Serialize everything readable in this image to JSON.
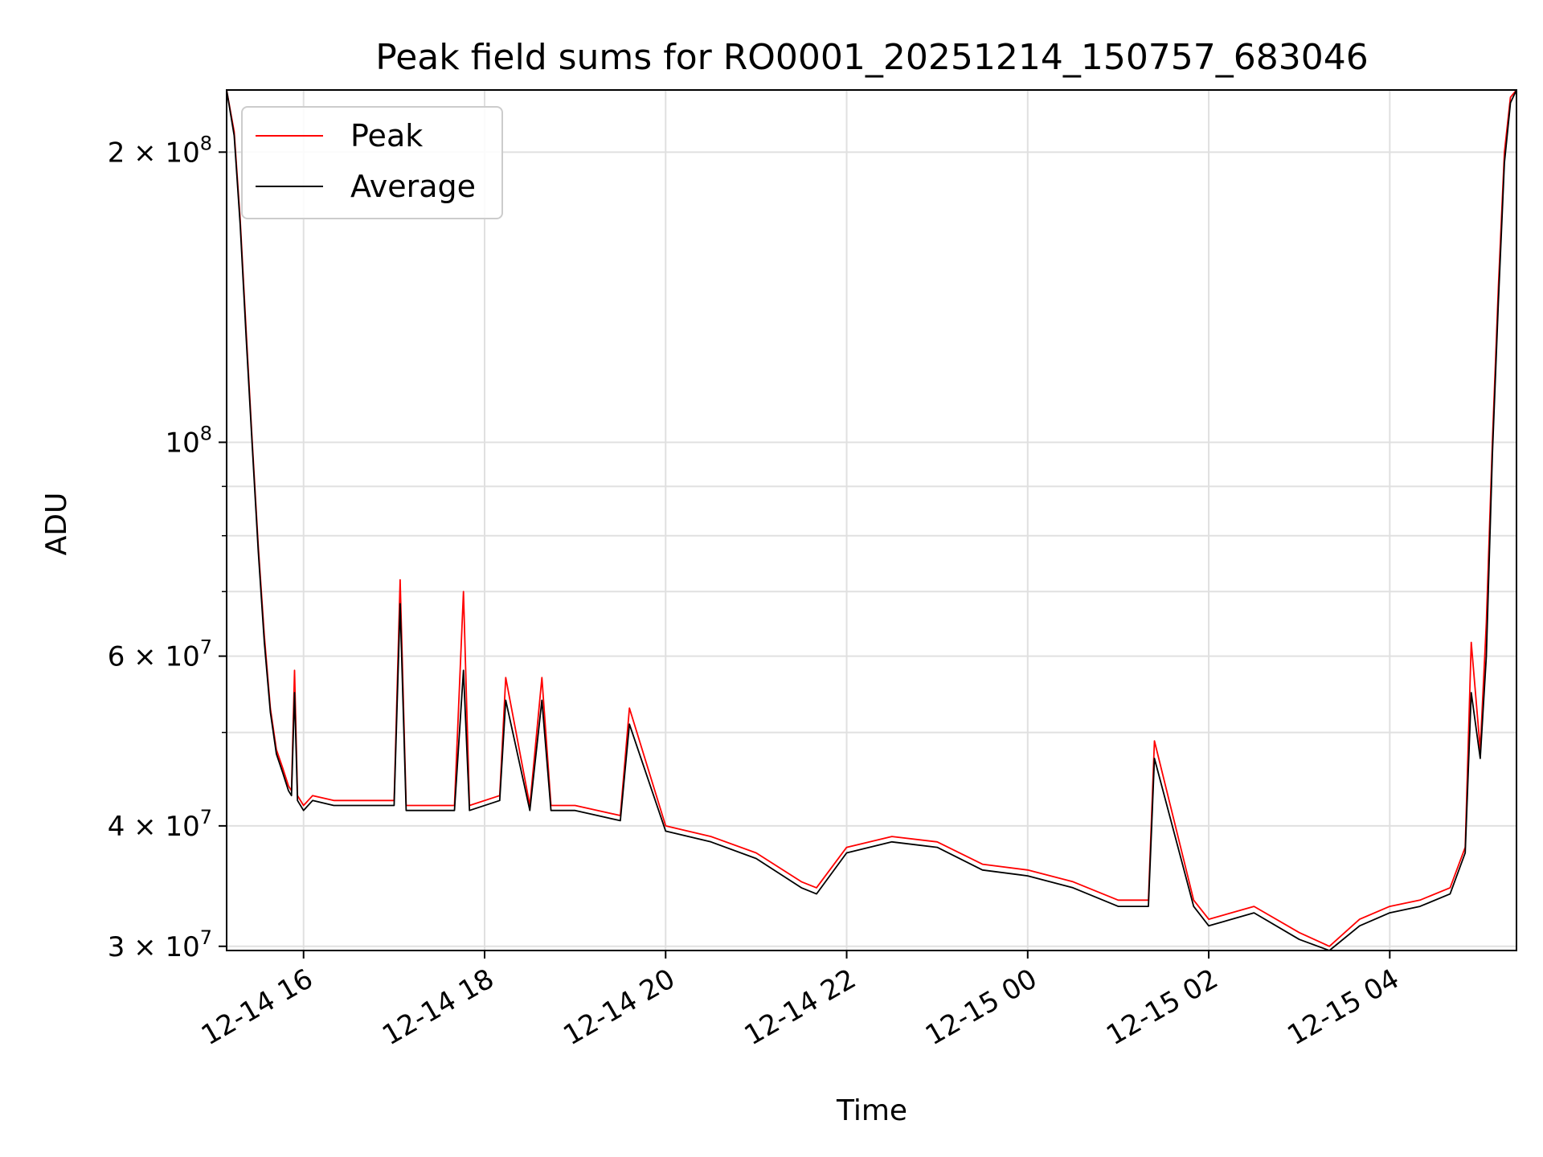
{
  "chart_data": {
    "type": "line",
    "title": "Peak field sums for RO0001_20251214_150757_683046",
    "xlabel": "Time",
    "ylabel": "ADU",
    "y_scale": "log",
    "xlim": [
      "12-14 15:09",
      "12-15 05:24"
    ],
    "ylim": [
      29700000,
      232000000
    ],
    "x_ticks": [
      "12-14 16",
      "12-14 18",
      "12-14 20",
      "12-14 22",
      "12-15 00",
      "12-15 02",
      "12-15 04"
    ],
    "y_ticks": [
      {
        "value": 200000000,
        "base": "2 × 10",
        "exp": "8"
      },
      {
        "value": 100000000,
        "base": "10",
        "exp": "8"
      },
      {
        "value": 60000000,
        "base": "6 × 10",
        "exp": "7"
      },
      {
        "value": 40000000,
        "base": "4 × 10",
        "exp": "7"
      },
      {
        "value": 30000000,
        "base": "3 × 10",
        "exp": "7"
      }
    ],
    "grid": true,
    "legend_position": "upper-left",
    "series": [
      {
        "name": "Peak",
        "color": "#ff0000",
        "x": [
          "12-14 15:09",
          "12-14 15:14",
          "12-14 15:18",
          "12-14 15:22",
          "12-14 15:26",
          "12-14 15:30",
          "12-14 15:34",
          "12-14 15:38",
          "12-14 15:42",
          "12-14 15:46",
          "12-14 15:50",
          "12-14 15:52",
          "12-14 15:54",
          "12-14 15:56",
          "12-14 16:00",
          "12-14 16:06",
          "12-14 16:20",
          "12-14 16:40",
          "12-14 17:00",
          "12-14 17:04",
          "12-14 17:08",
          "12-14 17:20",
          "12-14 17:40",
          "12-14 17:46",
          "12-14 17:50",
          "12-14 18:10",
          "12-14 18:14",
          "12-14 18:30",
          "12-14 18:38",
          "12-14 18:44",
          "12-14 19:00",
          "12-14 19:30",
          "12-14 19:36",
          "12-14 20:00",
          "12-14 20:30",
          "12-14 21:00",
          "12-14 21:30",
          "12-14 21:40",
          "12-14 22:00",
          "12-14 22:30",
          "12-14 23:00",
          "12-14 23:30",
          "12-15 00:00",
          "12-15 00:30",
          "12-15 01:00",
          "12-15 01:20",
          "12-15 01:24",
          "12-15 01:50",
          "12-15 02:00",
          "12-15 02:30",
          "12-15 03:00",
          "12-15 03:20",
          "12-15 03:40",
          "12-15 04:00",
          "12-15 04:20",
          "12-15 04:40",
          "12-15 04:50",
          "12-15 04:54",
          "12-15 05:00",
          "12-15 05:04",
          "12-15 05:08",
          "12-15 05:12",
          "12-15 05:16",
          "12-15 05:20",
          "12-15 05:24"
        ],
        "y": [
          232000000,
          210000000,
          170000000,
          130000000,
          100000000,
          78000000,
          63000000,
          53000000,
          48000000,
          46000000,
          44000000,
          43500000,
          58000000,
          43000000,
          42000000,
          43000000,
          42500000,
          42500000,
          42500000,
          72000000,
          42000000,
          42000000,
          42000000,
          70000000,
          42000000,
          43000000,
          57000000,
          42000000,
          57000000,
          42000000,
          42000000,
          41000000,
          53000000,
          40000000,
          39000000,
          37500000,
          35000000,
          34500000,
          38000000,
          39000000,
          38500000,
          36500000,
          36000000,
          35000000,
          33500000,
          33500000,
          49000000,
          33500000,
          32000000,
          33000000,
          31000000,
          30000000,
          32000000,
          33000000,
          33500000,
          34500000,
          38000000,
          62000000,
          48000000,
          65000000,
          100000000,
          145000000,
          200000000,
          228000000,
          232000000
        ]
      },
      {
        "name": "Average",
        "color": "#000000",
        "x": [
          "12-14 15:09",
          "12-14 15:14",
          "12-14 15:18",
          "12-14 15:22",
          "12-14 15:26",
          "12-14 15:30",
          "12-14 15:34",
          "12-14 15:38",
          "12-14 15:42",
          "12-14 15:46",
          "12-14 15:50",
          "12-14 15:52",
          "12-14 15:54",
          "12-14 15:56",
          "12-14 16:00",
          "12-14 16:06",
          "12-14 16:20",
          "12-14 16:40",
          "12-14 17:00",
          "12-14 17:04",
          "12-14 17:08",
          "12-14 17:20",
          "12-14 17:40",
          "12-14 17:46",
          "12-14 17:50",
          "12-14 18:10",
          "12-14 18:14",
          "12-14 18:30",
          "12-14 18:38",
          "12-14 18:44",
          "12-14 19:00",
          "12-14 19:30",
          "12-14 19:36",
          "12-14 20:00",
          "12-14 20:30",
          "12-14 21:00",
          "12-14 21:30",
          "12-14 21:40",
          "12-14 22:00",
          "12-14 22:30",
          "12-14 23:00",
          "12-14 23:30",
          "12-15 00:00",
          "12-15 00:30",
          "12-15 01:00",
          "12-15 01:20",
          "12-15 01:24",
          "12-15 01:50",
          "12-15 02:00",
          "12-15 02:30",
          "12-15 03:00",
          "12-15 03:20",
          "12-15 03:40",
          "12-15 04:00",
          "12-15 04:20",
          "12-15 04:40",
          "12-15 04:50",
          "12-15 04:54",
          "12-15 05:00",
          "12-15 05:04",
          "12-15 05:08",
          "12-15 05:12",
          "12-15 05:16",
          "12-15 05:20",
          "12-15 05:24"
        ],
        "y": [
          232000000,
          208000000,
          168000000,
          128000000,
          99000000,
          77000000,
          62000000,
          52500000,
          47500000,
          45500000,
          43500000,
          43000000,
          55000000,
          42500000,
          41500000,
          42500000,
          42000000,
          42000000,
          42000000,
          68000000,
          41500000,
          41500000,
          41500000,
          58000000,
          41500000,
          42500000,
          54000000,
          41500000,
          54000000,
          41500000,
          41500000,
          40500000,
          51000000,
          39500000,
          38500000,
          37000000,
          34500000,
          34000000,
          37500000,
          38500000,
          38000000,
          36000000,
          35500000,
          34500000,
          33000000,
          33000000,
          47000000,
          33000000,
          31500000,
          32500000,
          30500000,
          29700000,
          31500000,
          32500000,
          33000000,
          34000000,
          37500000,
          55000000,
          47000000,
          60000000,
          97000000,
          140000000,
          195000000,
          225000000,
          232000000
        ]
      }
    ]
  }
}
